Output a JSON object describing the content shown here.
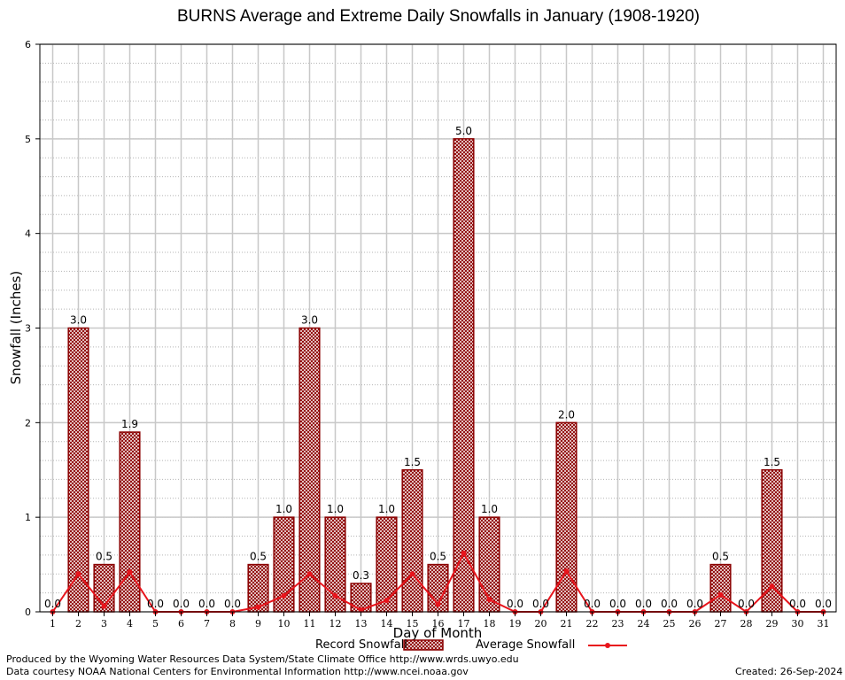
{
  "chart_data": {
    "type": "bar",
    "title": "BURNS Average and Extreme Daily Snowfalls in January (1908-1920)",
    "xlabel": "Day of Month",
    "ylabel": "Snowfall (Inches)",
    "ylim": [
      0,
      6
    ],
    "yticks": [
      "0",
      "1",
      "2",
      "3",
      "4",
      "5",
      "6"
    ],
    "grid": true,
    "legend_position": "bottom",
    "categories": [
      "1",
      "2",
      "3",
      "4",
      "5",
      "6",
      "7",
      "8",
      "9",
      "10",
      "11",
      "12",
      "13",
      "14",
      "15",
      "16",
      "17",
      "18",
      "19",
      "20",
      "21",
      "22",
      "23",
      "24",
      "25",
      "26",
      "27",
      "28",
      "29",
      "30",
      "31"
    ],
    "series": [
      {
        "name": "Record Snowfall",
        "kind": "bar",
        "color": "#8b0000",
        "values": [
          0.0,
          3.0,
          0.5,
          1.9,
          0.0,
          0.0,
          0.0,
          0.0,
          0.5,
          1.0,
          3.0,
          1.0,
          0.3,
          1.0,
          1.5,
          0.5,
          5.0,
          1.0,
          0.0,
          0.0,
          2.0,
          0.0,
          0.0,
          0.0,
          0.0,
          0.0,
          0.5,
          0.0,
          1.5,
          0.0,
          0.0
        ],
        "labels": [
          "0.0",
          "3.0",
          "0.5",
          "1.9",
          "0.0",
          "0.0",
          "0.0",
          "0.0",
          "0.5",
          "1.0",
          "3.0",
          "1.0",
          "0.3",
          "1.0",
          "1.5",
          "0.5",
          "5.0",
          "1.0",
          "0.0",
          "0.0",
          "2.0",
          "0.0",
          "0.0",
          "0.0",
          "0.0",
          "0.0",
          "0.5",
          "0.0",
          "1.5",
          "0.0",
          "0.0"
        ]
      },
      {
        "name": "Average Snowfall",
        "kind": "line",
        "color": "#e8141c",
        "values": [
          0.0,
          0.4,
          0.06,
          0.42,
          0.0,
          0.0,
          0.0,
          0.0,
          0.05,
          0.17,
          0.4,
          0.17,
          0.02,
          0.12,
          0.4,
          0.08,
          0.62,
          0.13,
          0.0,
          0.0,
          0.43,
          0.0,
          0.0,
          0.0,
          0.0,
          0.0,
          0.18,
          0.0,
          0.27,
          0.0,
          0.0
        ]
      }
    ]
  },
  "footer": {
    "produced_by": "Produced by the Wyoming Water Resources Data System/State Climate Office http://www.wrds.uwyo.edu",
    "courtesy": "Data courtesy NOAA National Centers for Environmental Information http://www.ncei.noaa.gov",
    "created": "Created:  26-Sep-2024"
  }
}
